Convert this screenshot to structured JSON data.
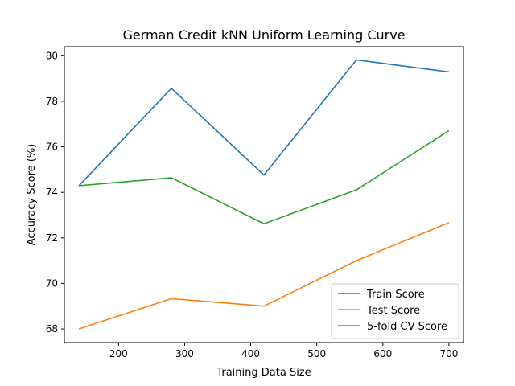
{
  "chart_data": {
    "type": "line",
    "title": "German Credit kNN Uniform Learning Curve",
    "xlabel": "Training Data Size",
    "ylabel": "Accuracy Score (%)",
    "xlim": [
      118,
      722
    ],
    "ylim": [
      67.4,
      80.4
    ],
    "xticks": [
      200,
      300,
      400,
      500,
      600,
      700
    ],
    "yticks": [
      68,
      70,
      72,
      74,
      76,
      78,
      80
    ],
    "grid": false,
    "legend_position": "lower-right",
    "x": [
      140,
      280,
      420,
      560,
      700
    ],
    "series": [
      {
        "name": "Train Score",
        "color": "#1f77b4",
        "values": [
          74.29,
          78.57,
          74.76,
          79.82,
          79.29
        ]
      },
      {
        "name": "Test Score",
        "color": "#ff7f0e",
        "values": [
          68.0,
          69.33,
          69.0,
          71.0,
          72.67
        ]
      },
      {
        "name": "5-fold CV Score",
        "color": "#2ca02c",
        "values": [
          74.29,
          74.64,
          72.62,
          74.11,
          76.71
        ]
      }
    ]
  }
}
